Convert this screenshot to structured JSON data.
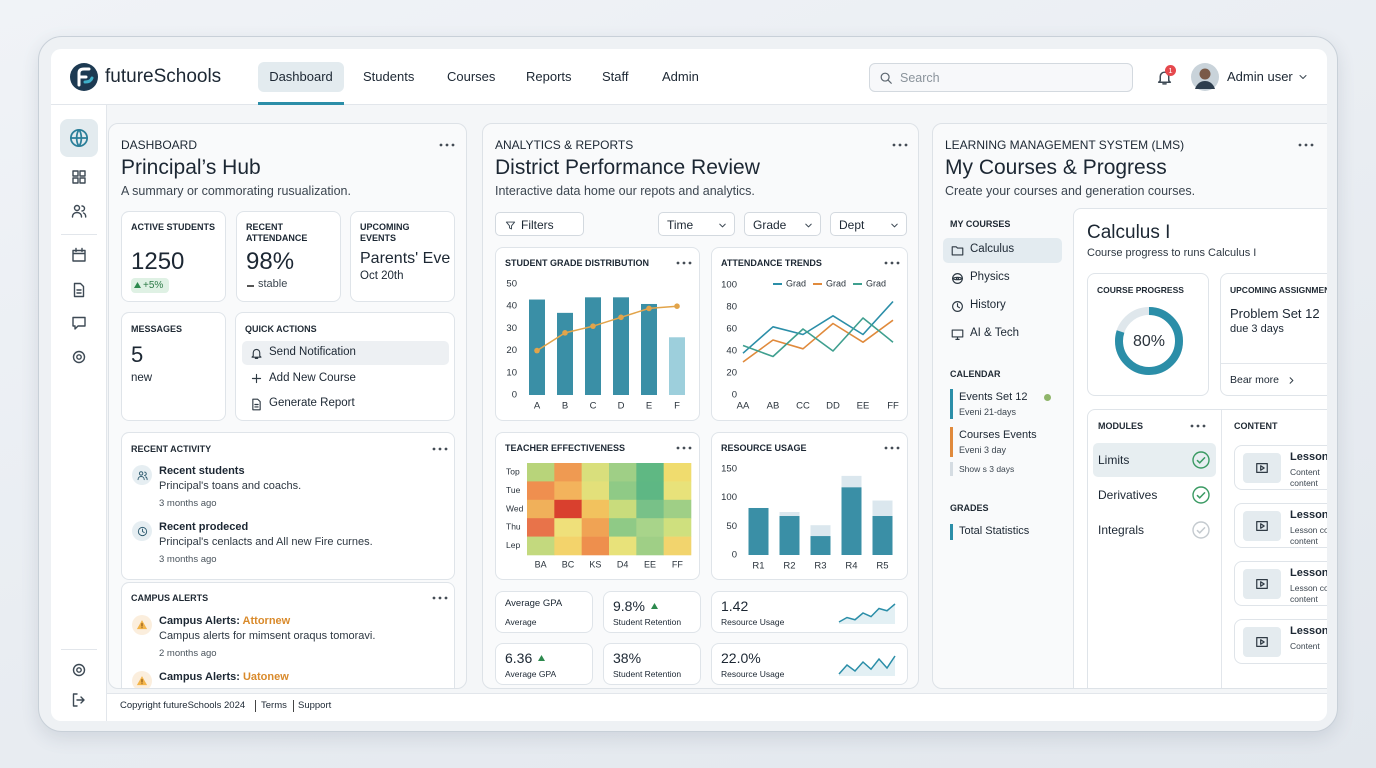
{
  "nav": {
    "brand": "futureSchools",
    "tabs": [
      "Dashboard",
      "Students",
      "Courses",
      "Reports",
      "Staff",
      "Admin"
    ],
    "active_tab": 0,
    "search": "Search",
    "badge": "1",
    "user": "Admin user"
  },
  "hub": {
    "eyebrow": "DASHBOARD",
    "title": "Principal’s Hub",
    "subtitle": "A summary or commorating rusualization.",
    "stats": [
      {
        "label": "ACTIVE STUDENTS",
        "value": "1250",
        "note": "+5%"
      },
      {
        "label": "RECENT ATTENDANCE",
        "value": "98%",
        "note": "stable"
      },
      {
        "label": "UPCOMING EVENTS",
        "value": "Parents' Eve",
        "note": "Oct 20th"
      }
    ],
    "messages": {
      "label": "MESSAGES",
      "value": "5",
      "note": "new"
    },
    "quick_actions": {
      "label": "QUICK ACTIONS",
      "items": [
        "Send Notification",
        "Add New Course",
        "Generate Report"
      ]
    },
    "activity": {
      "label": "RECENT ACTIVITY",
      "items": [
        {
          "title": "Recent students",
          "text": "Principal's toans and coachs.",
          "time": "3 months ago"
        },
        {
          "title": "Recent prodeced",
          "text": "Principal's cenlacts and All new Fire curnes.",
          "time": "3 months ago"
        }
      ]
    },
    "alerts": {
      "label": "CAMPUS ALERTS",
      "items": [
        {
          "title": "Campus Alerts:",
          "tag": "Attornew",
          "text": "Campus alerts for mimsent oraqus tomoravi.",
          "time": "2 months ago"
        },
        {
          "title": "Campus Alerts:",
          "tag": "Uatonew"
        }
      ]
    }
  },
  "footer": {
    "copyright": "Copyright futureSchools 2024",
    "links": [
      "Terms",
      "Support"
    ]
  },
  "analytics": {
    "eyebrow": "ANALYTICS & REPORTS",
    "title": "District Performance Review",
    "subtitle": "Interactive data home our repots and analytics.",
    "filters": "Filters",
    "dropdowns": [
      "Time",
      "Grade",
      "Dept"
    ],
    "grade_chart": {
      "type": "bar",
      "title": "STUDENT GRADE DISTRIBUTION",
      "categories": [
        "A",
        "B",
        "C",
        "D",
        "E",
        "F"
      ],
      "values": [
        43,
        37,
        44,
        44,
        41,
        26
      ],
      "colors": [
        "#3a8fa6",
        "#3a8fa6",
        "#3a8fa6",
        "#3a8fa6",
        "#3a8fa6",
        "#9dcfdc"
      ],
      "line": {
        "values": [
          20,
          28,
          31,
          35,
          39,
          40
        ],
        "color": "#e2a44a"
      },
      "ylim": [
        0,
        50
      ],
      "yticks": [
        0,
        10,
        20,
        30,
        40,
        50
      ],
      "grid": false
    },
    "attendance_chart": {
      "type": "line",
      "title": "ATTENDANCE TRENDS",
      "categories": [
        "AA",
        "AB",
        "CC",
        "DD",
        "EE",
        "FF"
      ],
      "series": [
        {
          "name": "Grad",
          "color": "#2b8ea8",
          "values": [
            38,
            62,
            55,
            72,
            55,
            85
          ]
        },
        {
          "name": "Grad",
          "color": "#e08a3c",
          "values": [
            30,
            50,
            42,
            65,
            48,
            68
          ]
        },
        {
          "name": "Grad",
          "color": "#3f9f8f",
          "values": [
            45,
            35,
            60,
            40,
            70,
            48
          ]
        }
      ],
      "ylim": [
        0,
        100
      ],
      "yticks": [
        0,
        20,
        40,
        60,
        80,
        100
      ]
    },
    "teacher_chart": {
      "type": "heatmap",
      "title": "TEACHER EFFECTIVENESS",
      "rows": [
        "Top",
        "Tue",
        "Wed",
        "Thu",
        "Lep"
      ],
      "columns": [
        "BA",
        "BC",
        "KS",
        "D4",
        "EE",
        "FF"
      ],
      "colors": [
        [
          "#b8d47a",
          "#ef9a52",
          "#d9df7c",
          "#9fcf86",
          "#5fb883",
          "#f0dc6e"
        ],
        [
          "#ef8f4f",
          "#f3b35c",
          "#e3e07a",
          "#8fca86",
          "#5eb784",
          "#e8e27a"
        ],
        [
          "#f0b05a",
          "#d9402e",
          "#f2c25e",
          "#c9dc7c",
          "#78c188",
          "#9fcf86"
        ],
        [
          "#e8734a",
          "#efe07a",
          "#f0a354",
          "#8fca86",
          "#a8d48a",
          "#cfe07e"
        ],
        [
          "#c3d97e",
          "#f3d36b",
          "#ee8f4d",
          "#e8e27a",
          "#9fcf86",
          "#f2d46d"
        ]
      ]
    },
    "resource_chart": {
      "type": "bar",
      "title": "RESOURCE USAGE",
      "categories": [
        "R1",
        "R2",
        "R3",
        "R4",
        "R5"
      ],
      "values": [
        82,
        68,
        33,
        118,
        68
      ],
      "capacity": [
        null,
        75,
        52,
        138,
        95
      ],
      "color": "#3a8fa6",
      "capacity_color": "#dbe7ee",
      "ylim": [
        0,
        150
      ],
      "yticks": [
        0,
        50,
        100,
        150
      ]
    },
    "kpis": [
      {
        "value": "Average GPA",
        "label": "Average"
      },
      {
        "value": "9.8%",
        "label": "Student Retention",
        "up": true
      },
      {
        "value": "1.42",
        "label": "Resource Usage",
        "trend": [
          3,
          4,
          3.5,
          5,
          4.2,
          6,
          5.5,
          7
        ]
      },
      {
        "value": "6.36",
        "label": "Average GPA",
        "up": true
      },
      {
        "value": "38%",
        "label": "Student Retention"
      },
      {
        "value": "22.0%",
        "label": "Resource Usage",
        "trend": [
          4,
          5.5,
          4.5,
          6,
          4.8,
          6.5,
          5,
          7
        ]
      }
    ]
  },
  "lms": {
    "eyebrow": "LEARNING MANAGEMENT SYSTEM (LMS)",
    "title": "My Courses & Progress",
    "subtitle": "Create your courses and generation courses.",
    "courses": {
      "label": "MY COURSES",
      "items": [
        "Calculus",
        "Physics",
        "History",
        "AI & Tech"
      ]
    },
    "calendar": {
      "label": "CALENDAR",
      "items": [
        {
          "title": "Events Set 12",
          "text": "Eveni 21-days",
          "color": "#2b8ea8"
        },
        {
          "title": "Courses Events",
          "text": "Eveni 3 day",
          "color": "#e08a3c"
        },
        {
          "text": "Show s 3 days",
          "color": "#d5dce2"
        }
      ]
    },
    "grades": {
      "label": "GRADES",
      "items": [
        "Total Statistics"
      ]
    },
    "course": {
      "title": "Calculus I",
      "subtitle": "Course progress to runs Calculus I",
      "progress": {
        "label": "COURSE PROGRESS",
        "value": 80,
        "value_label": "80%",
        "color": "#2b8ea8"
      },
      "assignment": {
        "label": "UPCOMING ASSIGNMENT",
        "title": "Problem Set 12",
        "due": "due 3 days",
        "link": "Bear more"
      },
      "modules": {
        "label": "MODULES",
        "items": [
          {
            "name": "Limits",
            "done": true
          },
          {
            "name": "Derivatives",
            "done": true
          },
          {
            "name": "Integrals",
            "done": false
          }
        ]
      },
      "content": {
        "label": "CONTENT",
        "items": [
          {
            "title": "Lesson",
            "lines": [
              "Content",
              "content"
            ]
          },
          {
            "title": "Lesson",
            "lines": [
              "Lesson content",
              "content"
            ]
          },
          {
            "title": "Lesson",
            "lines": [
              "Lesson content",
              "content"
            ]
          },
          {
            "title": "Lesson",
            "lines": [
              "Content"
            ]
          }
        ]
      }
    }
  }
}
